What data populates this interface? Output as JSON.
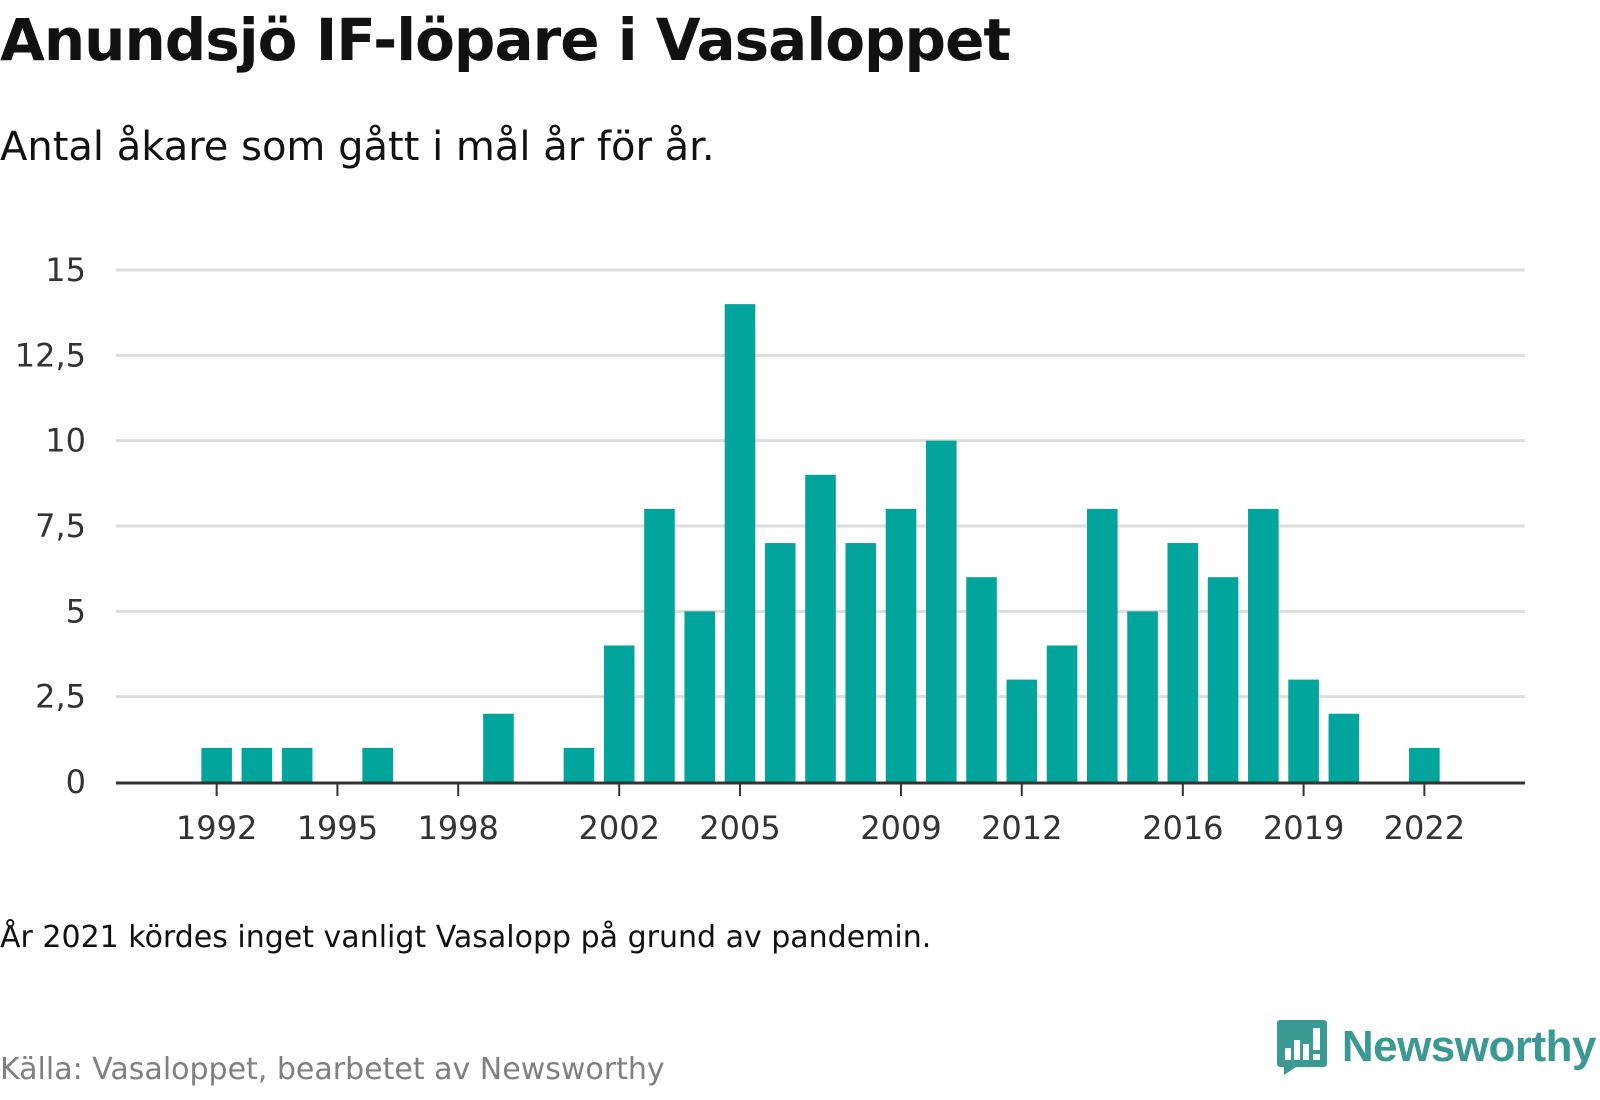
{
  "header": {
    "title": "Anundsjö IF-löpare i Vasaloppet",
    "subtitle": "Antal åkare som gått i mål år för år."
  },
  "footer": {
    "note": "År 2021 kördes inget vanligt Vasalopp på grund av pandemin.",
    "source": "Källa: Vasaloppet, bearbetet av Newsworthy",
    "brand": "Newsworthy"
  },
  "colors": {
    "bar": "#02a59b",
    "brand": "#3a9a93",
    "grid": "#dddddd",
    "axis": "#333333"
  },
  "icons": {
    "brand_logo": "newsworthy-logo-icon"
  },
  "chart_data": {
    "type": "bar",
    "title": "Anundsjö IF-löpare i Vasaloppet",
    "subtitle": "Antal åkare som gått i mål år för år.",
    "xlabel": "",
    "ylabel": "",
    "x": [
      1990,
      1991,
      1992,
      1993,
      1994,
      1995,
      1996,
      1997,
      1998,
      1999,
      2000,
      2001,
      2002,
      2003,
      2004,
      2005,
      2006,
      2007,
      2008,
      2009,
      2010,
      2011,
      2012,
      2013,
      2014,
      2015,
      2016,
      2017,
      2018,
      2019,
      2020,
      2021,
      2022,
      2023,
      2024
    ],
    "values": [
      null,
      null,
      1,
      1,
      1,
      null,
      1,
      null,
      null,
      2,
      null,
      1,
      4,
      8,
      5,
      14,
      7,
      9,
      7,
      8,
      10,
      6,
      3,
      4,
      8,
      5,
      7,
      6,
      8,
      3,
      2,
      null,
      1,
      null,
      null
    ],
    "x_tick_values": [
      1992,
      1995,
      1998,
      2002,
      2005,
      2009,
      2012,
      2016,
      2019,
      2022
    ],
    "x_tick_labels": [
      "1992",
      "1995",
      "1998",
      "2002",
      "2005",
      "2009",
      "2012",
      "2016",
      "2019",
      "2022"
    ],
    "y_tick_values": [
      0,
      2.5,
      5,
      7.5,
      10,
      12.5,
      15
    ],
    "y_tick_labels": [
      "0",
      "2,5",
      "5",
      "7,5",
      "10",
      "12,5",
      "15"
    ],
    "ylim": [
      0,
      15
    ],
    "grid": true,
    "legend": "none"
  }
}
